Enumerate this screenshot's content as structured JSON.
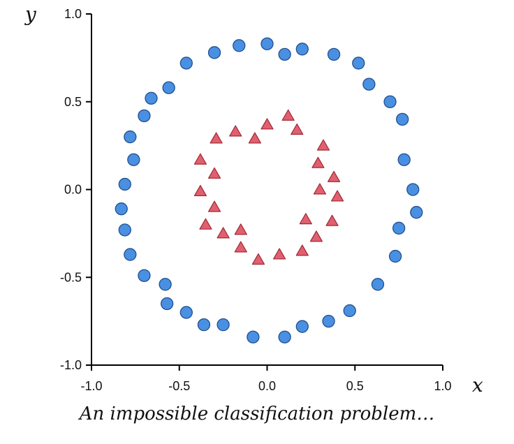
{
  "chart_data": {
    "type": "scatter",
    "xlabel": "x",
    "ylabel": "y",
    "xlim": [
      -1.0,
      1.0
    ],
    "ylim": [
      -1.0,
      1.0
    ],
    "xticks": [
      "-1.0",
      "-0.5",
      "0.0",
      "0.5",
      "1.0"
    ],
    "yticks": [
      "-1.0",
      "-0.5",
      "0.0",
      "0.5",
      "1.0"
    ],
    "grid": false,
    "series": [
      {
        "marker": "circle",
        "color": "#4a90e2",
        "points": [
          [
            0.0,
            0.83
          ],
          [
            0.1,
            0.77
          ],
          [
            0.2,
            0.8
          ],
          [
            -0.16,
            0.82
          ],
          [
            -0.3,
            0.78
          ],
          [
            0.38,
            0.77
          ],
          [
            0.52,
            0.72
          ],
          [
            0.58,
            0.6
          ],
          [
            0.7,
            0.5
          ],
          [
            0.77,
            0.4
          ],
          [
            0.78,
            0.17
          ],
          [
            0.83,
            0.0
          ],
          [
            0.85,
            -0.13
          ],
          [
            0.75,
            -0.22
          ],
          [
            0.73,
            -0.38
          ],
          [
            0.63,
            -0.54
          ],
          [
            0.47,
            -0.69
          ],
          [
            0.35,
            -0.75
          ],
          [
            0.2,
            -0.78
          ],
          [
            0.1,
            -0.84
          ],
          [
            -0.08,
            -0.84
          ],
          [
            -0.25,
            -0.77
          ],
          [
            -0.36,
            -0.77
          ],
          [
            -0.46,
            -0.7
          ],
          [
            -0.57,
            -0.65
          ],
          [
            -0.58,
            -0.54
          ],
          [
            -0.7,
            -0.49
          ],
          [
            -0.78,
            -0.37
          ],
          [
            -0.81,
            -0.23
          ],
          [
            -0.83,
            -0.11
          ],
          [
            -0.81,
            0.03
          ],
          [
            -0.76,
            0.17
          ],
          [
            -0.78,
            0.3
          ],
          [
            -0.7,
            0.42
          ],
          [
            -0.66,
            0.52
          ],
          [
            -0.56,
            0.58
          ],
          [
            -0.46,
            0.72
          ]
        ]
      },
      {
        "marker": "triangle",
        "color": "#e06070",
        "points": [
          [
            0.12,
            0.42
          ],
          [
            0.0,
            0.37
          ],
          [
            0.17,
            0.34
          ],
          [
            -0.18,
            0.33
          ],
          [
            -0.07,
            0.29
          ],
          [
            -0.29,
            0.29
          ],
          [
            0.32,
            0.25
          ],
          [
            -0.38,
            0.17
          ],
          [
            0.29,
            0.15
          ],
          [
            0.38,
            0.07
          ],
          [
            -0.3,
            0.09
          ],
          [
            0.3,
            0.0
          ],
          [
            -0.38,
            -0.01
          ],
          [
            0.4,
            -0.04
          ],
          [
            -0.3,
            -0.1
          ],
          [
            0.22,
            -0.17
          ],
          [
            0.37,
            -0.18
          ],
          [
            -0.35,
            -0.2
          ],
          [
            -0.15,
            -0.23
          ],
          [
            -0.25,
            -0.25
          ],
          [
            0.28,
            -0.27
          ],
          [
            -0.15,
            -0.33
          ],
          [
            0.2,
            -0.35
          ],
          [
            0.07,
            -0.37
          ],
          [
            -0.05,
            -0.4
          ]
        ]
      }
    ]
  },
  "caption": "An impossible classification problem…"
}
